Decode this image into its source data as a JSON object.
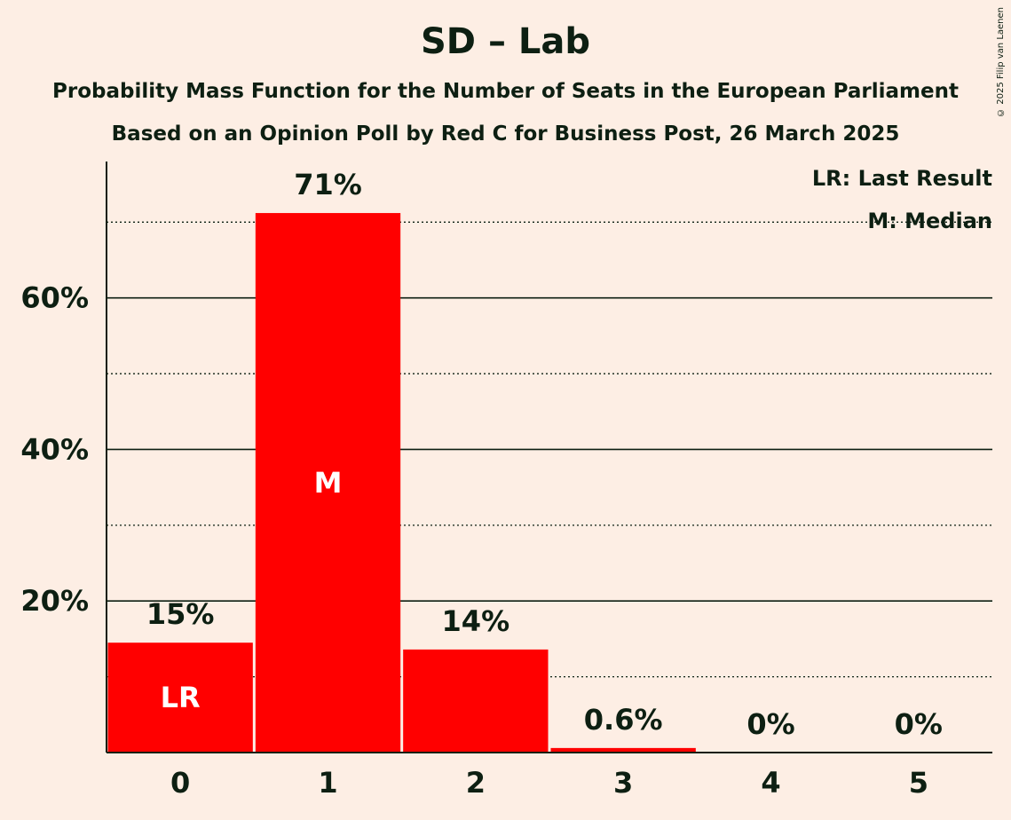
{
  "chart_data": {
    "type": "bar",
    "title": "SD – Lab",
    "subtitle": "Probability Mass Function for the Number of Seats in the European Parliament",
    "subtitle2": "Based on an Opinion Poll by Red C for Business Post, 26 March 2025",
    "copyright": "© 2025 Filip van Laenen",
    "categories": [
      "0",
      "1",
      "2",
      "3",
      "4",
      "5"
    ],
    "values": [
      14.5,
      71.2,
      13.6,
      0.6,
      0,
      0
    ],
    "value_labels": [
      "15%",
      "71%",
      "14%",
      "0.6%",
      "0%",
      "0%"
    ],
    "bar_markers": [
      "LR",
      "M",
      "",
      "",
      "",
      ""
    ],
    "ylim": [
      0,
      78
    ],
    "yticks": [
      20,
      40,
      60
    ],
    "ytick_labels": [
      "20%",
      "40%",
      "60%"
    ],
    "minor_gridlines": [
      10,
      30,
      50,
      70
    ],
    "legend": [
      "LR: Last Result",
      "M: Median"
    ],
    "bar_color": "#ff0000"
  }
}
